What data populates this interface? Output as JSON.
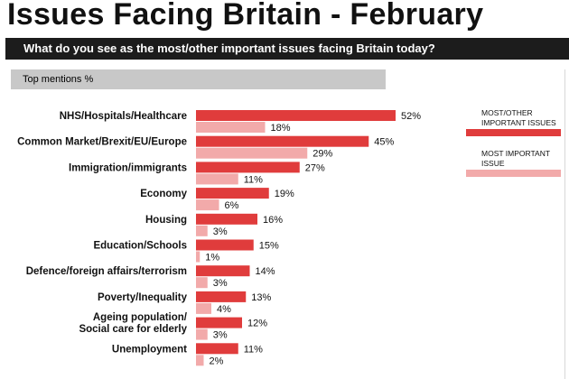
{
  "title": "Issues Facing Britain - February",
  "question": "What do you see as the most/other important issues facing Britain today?",
  "subheader": "Top mentions %",
  "legend": {
    "primary": {
      "lines": [
        "MOST/OTHER",
        "IMPORTANT ISSUES"
      ],
      "color": "#e03c3c"
    },
    "secondary": {
      "lines": [
        "MOST IMPORTANT",
        "ISSUE"
      ],
      "color": "#f2aaaa"
    }
  },
  "chart_data": {
    "type": "bar",
    "orientation": "horizontal",
    "categories": [
      "NHS/Hospitals/Healthcare",
      "Common Market/Brexit/EU/Europe",
      "Immigration/immigrants",
      "Economy",
      "Housing",
      "Education/Schools",
      "Defence/foreign affairs/terrorism",
      "Poverty/Inequality",
      "Ageing population/\nSocial care for elderly",
      "Unemployment"
    ],
    "series": [
      {
        "name": "MOST/OTHER IMPORTANT ISSUES",
        "color": "#e03c3c",
        "values": [
          52,
          45,
          27,
          19,
          16,
          15,
          14,
          13,
          12,
          11
        ]
      },
      {
        "name": "MOST IMPORTANT ISSUE",
        "color": "#f2aaaa",
        "values": [
          18,
          29,
          11,
          6,
          3,
          1,
          3,
          4,
          3,
          2
        ]
      }
    ],
    "value_suffix": "%",
    "xlim": [
      0,
      52
    ]
  }
}
